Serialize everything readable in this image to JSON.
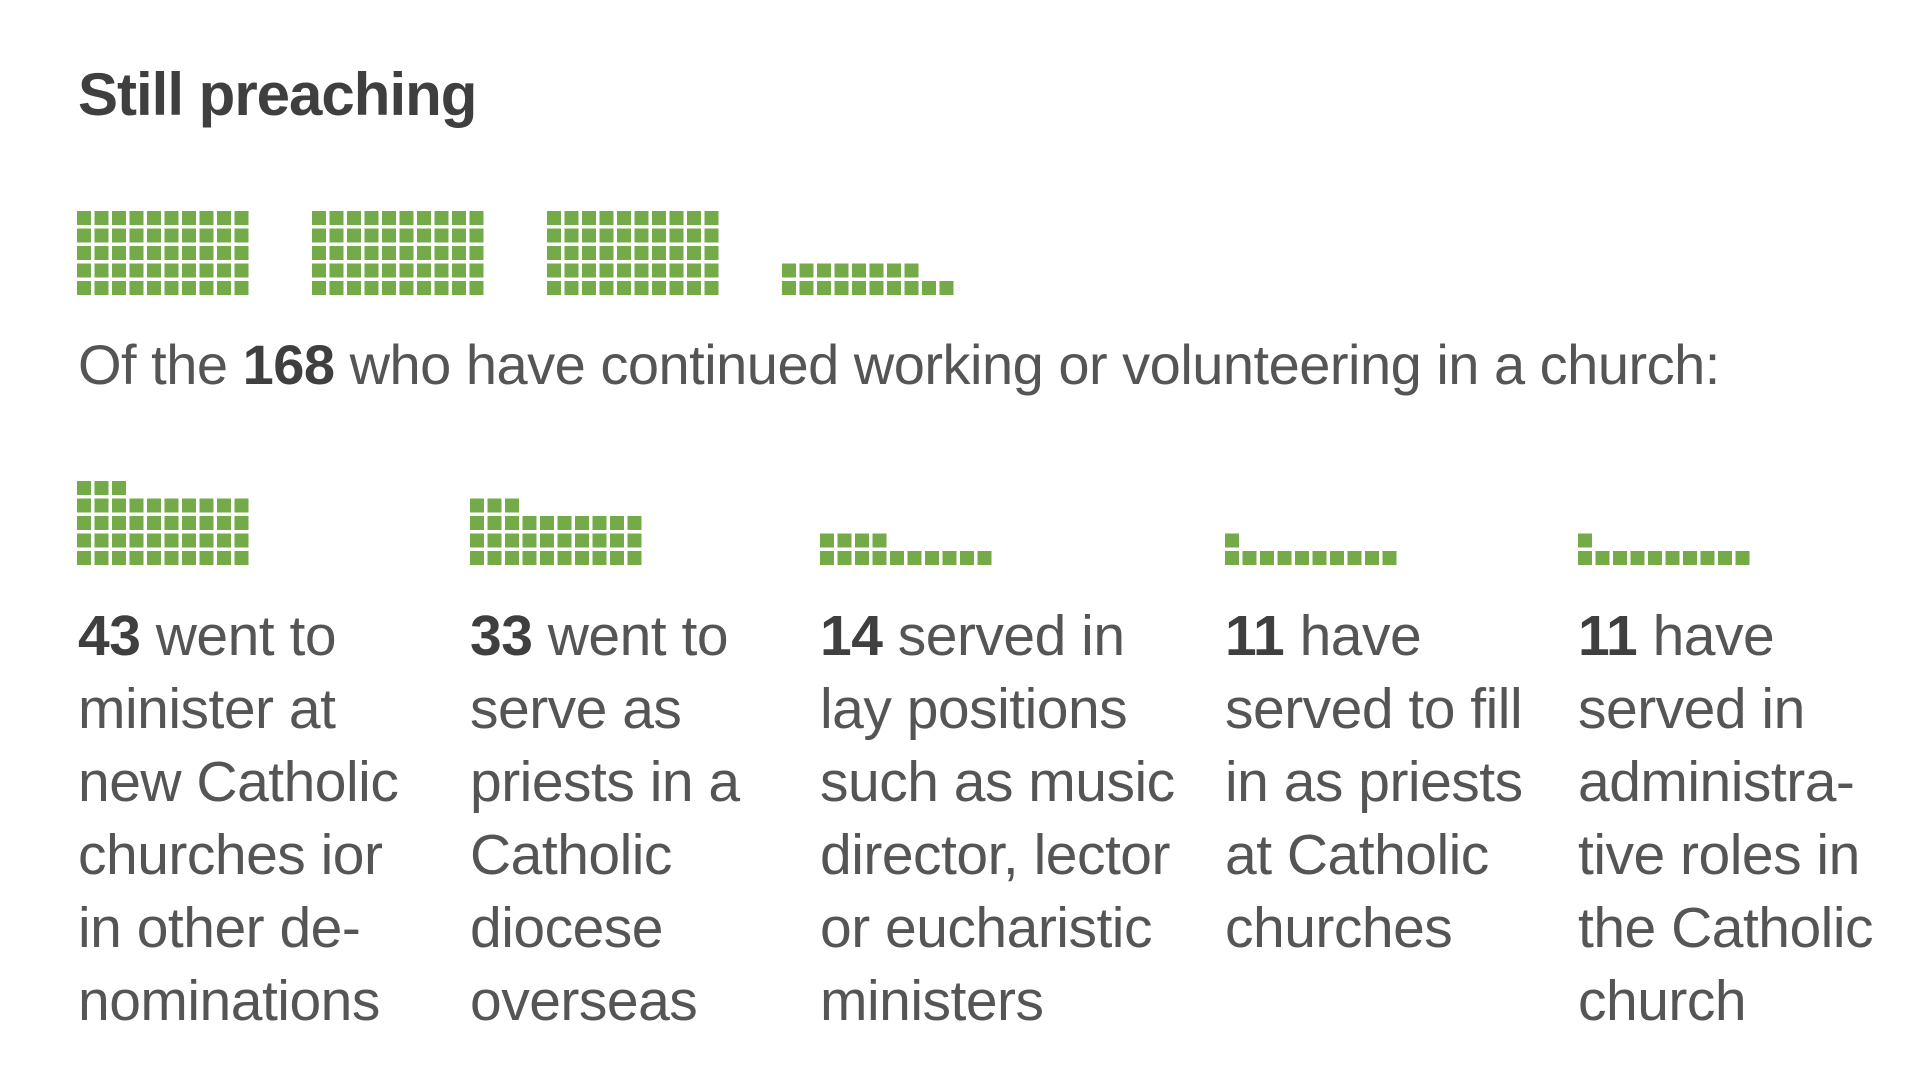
{
  "title": "Still preaching",
  "subtitle": {
    "prefix": "Of the ",
    "number": "168",
    "suffix": " who have continued working or volunteering in a church:"
  },
  "colors": {
    "square": "#74ab48",
    "text": "#555555",
    "heading": "#3f3f3f"
  },
  "chart_data": {
    "type": "waffle",
    "total": 168,
    "categories": [
      {
        "value": 43,
        "number": "43",
        "lines": [
          " went to",
          "minister at",
          "new Catholic",
          "churches ior",
          "in other de-",
          "nominations"
        ]
      },
      {
        "value": 33,
        "number": "33",
        "lines": [
          " went to",
          "serve as",
          "priests in a",
          "Catholic",
          "diocese",
          "overseas"
        ]
      },
      {
        "value": 14,
        "number": "14",
        "lines": [
          " served in",
          "lay positions",
          "such as music",
          "director, lector",
          "or eucharistic",
          "ministers"
        ]
      },
      {
        "value": 11,
        "number": "11",
        "lines": [
          " have",
          "served to fill",
          "in as priests",
          "at Catholic",
          "churches"
        ]
      },
      {
        "value": 11,
        "number": "11",
        "lines": [
          " have",
          "served in",
          "administra-",
          "tive roles in",
          "the Catholic",
          "church"
        ]
      }
    ]
  }
}
